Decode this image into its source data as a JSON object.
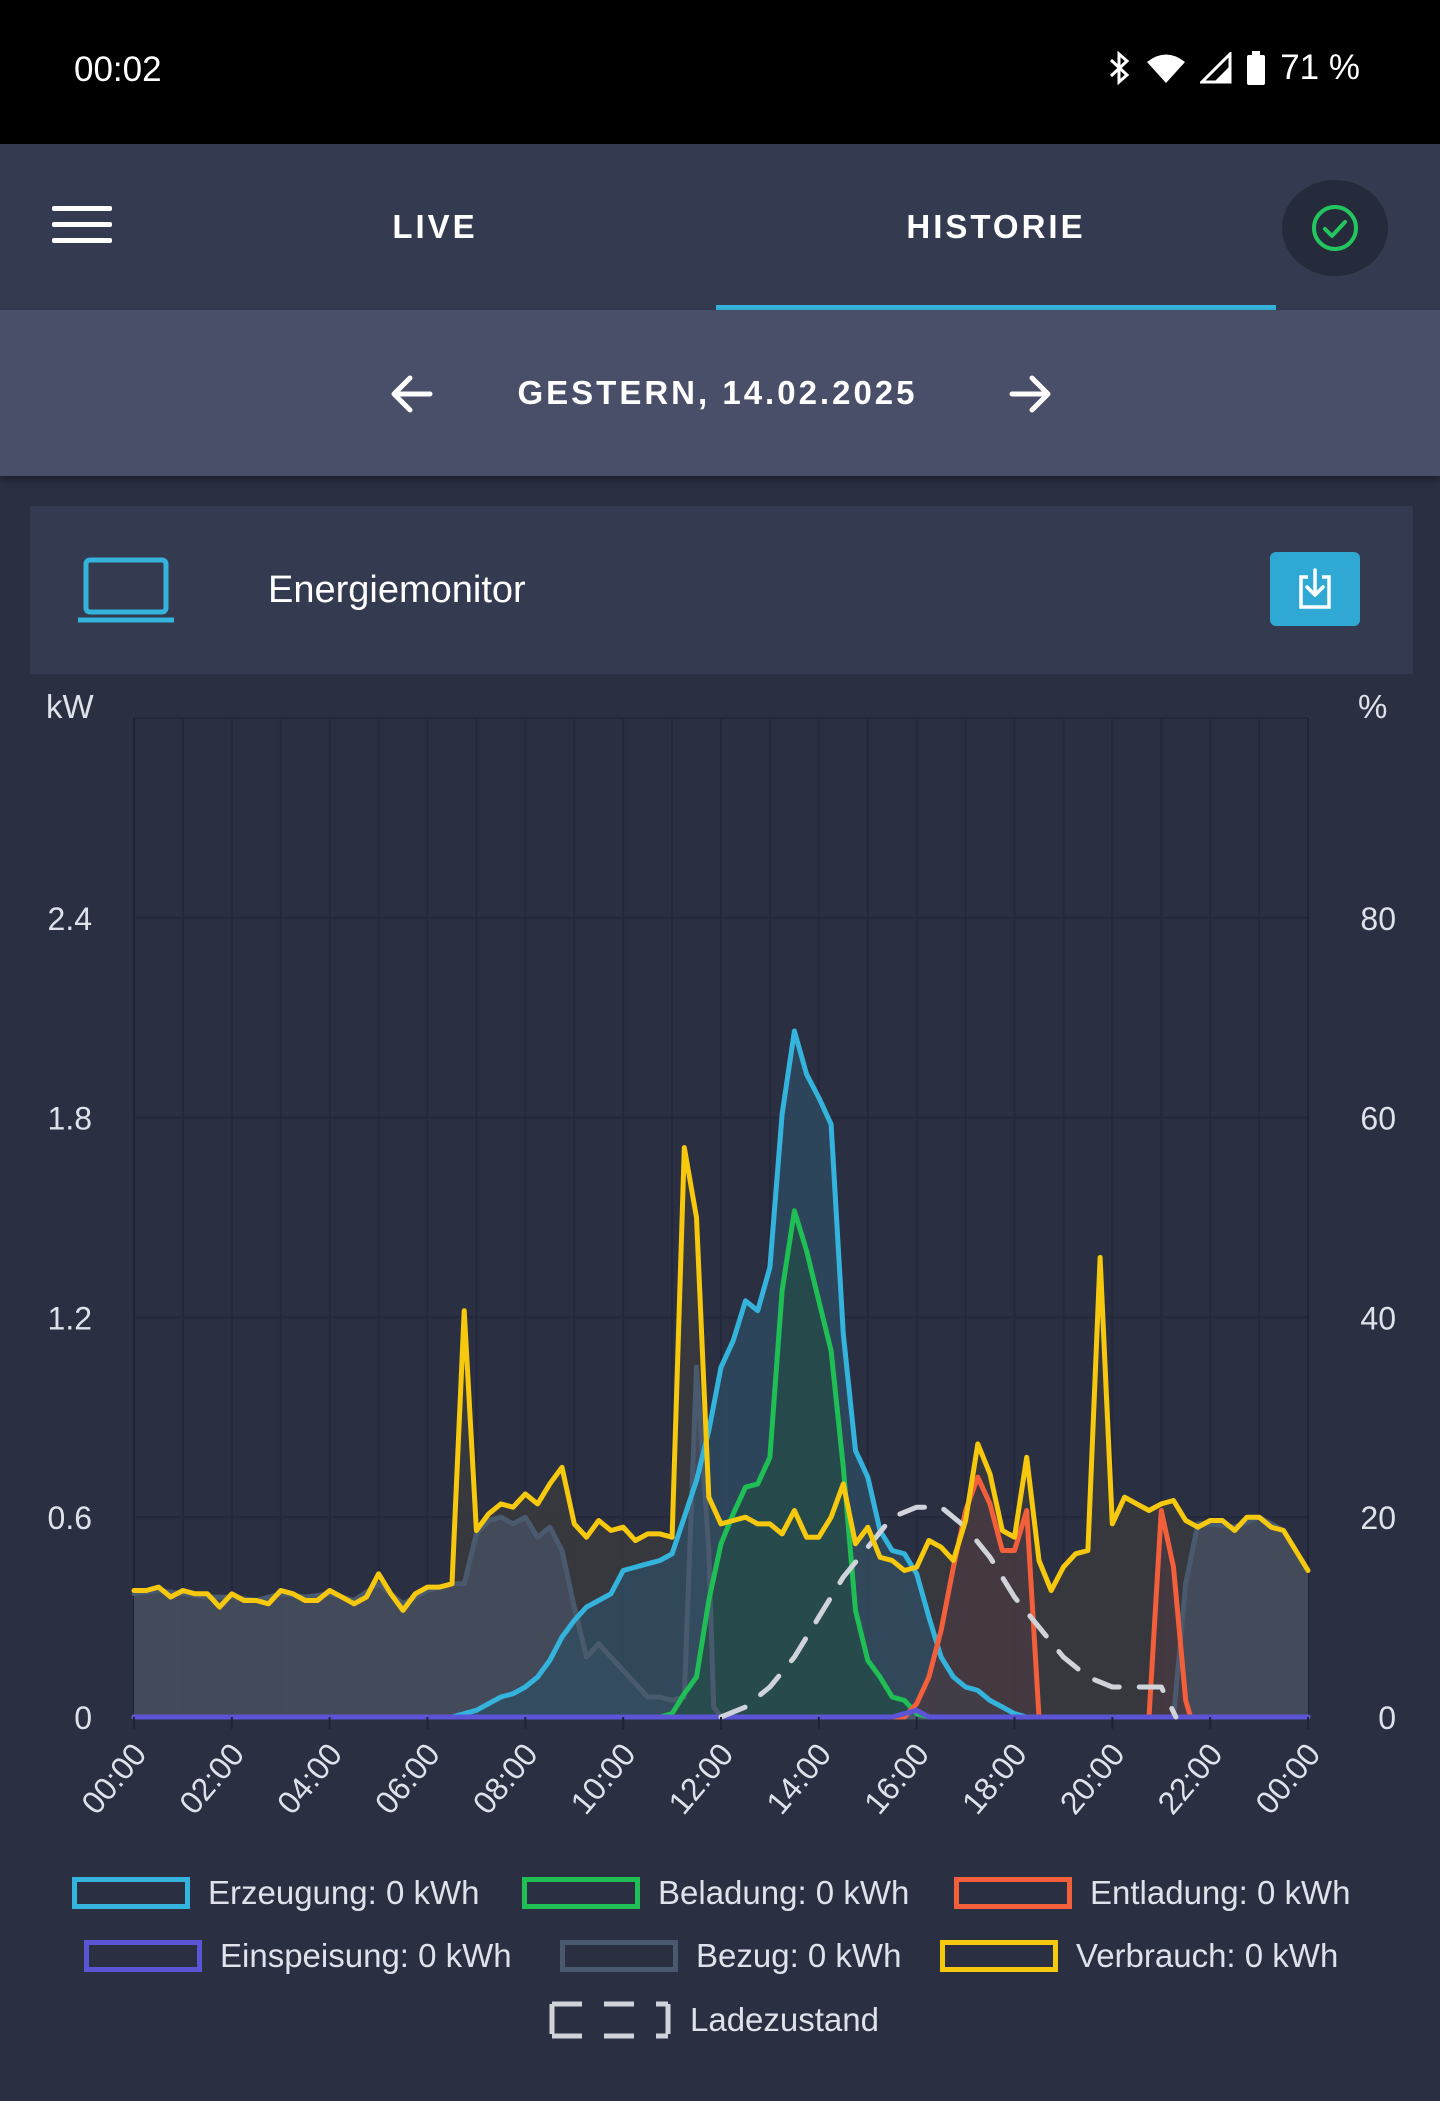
{
  "status_bar": {
    "time": "00:02",
    "battery": "71 %",
    "icons": [
      "bluetooth-icon",
      "wifi-icon",
      "signal-icon",
      "battery-icon"
    ]
  },
  "appbar": {
    "tabs": [
      {
        "label": "LIVE",
        "active": false
      },
      {
        "label": "HISTORIE",
        "active": true
      }
    ],
    "status_icon": "check-circle-icon",
    "accent": "#34b4dc",
    "ok_color": "#22c55e"
  },
  "date_nav": {
    "label": "GESTERN, 14.02.2025"
  },
  "card": {
    "title": "Energiemonitor",
    "icon": "laptop-icon",
    "action_icon": "download-icon"
  },
  "legend": [
    {
      "label": "Erzeugung: 0 kWh",
      "color": "#34b4dc"
    },
    {
      "label": "Beladung: 0 kWh",
      "color": "#1fbf55"
    },
    {
      "label": "Entladung: 0 kWh",
      "color": "#f25f3a"
    },
    {
      "label": "Einspeisung: 0 kWh",
      "color": "#5b55d6"
    },
    {
      "label": "Bezug: 0 kWh",
      "color": "#4a5a6e"
    },
    {
      "label": "Verbrauch: 0 kWh",
      "color": "#f6c90e"
    },
    {
      "label": "Ladezustand",
      "color": "#d0d3da"
    }
  ],
  "chart_data": {
    "type": "area",
    "left_axis_unit": "kW",
    "right_axis_unit": "%",
    "ylim": [
      0,
      3.0
    ],
    "y_ticks": [
      "0",
      "0.6",
      "1.2",
      "1.8",
      "2.4"
    ],
    "y_ticks_values": [
      0,
      0.6,
      1.2,
      1.8,
      2.4
    ],
    "y2lim": [
      0,
      100
    ],
    "y2_ticks": [
      "0",
      "20",
      "40",
      "60",
      "80"
    ],
    "y2_ticks_values": [
      0,
      20,
      40,
      60,
      80
    ],
    "x_ticks": [
      "00:00",
      "02:00",
      "04:00",
      "06:00",
      "08:00",
      "10:00",
      "12:00",
      "14:00",
      "16:00",
      "18:00",
      "20:00",
      "22:00",
      "00:00"
    ],
    "x_range_hours": [
      0,
      24
    ],
    "grid": true,
    "legend_position": "bottom",
    "series": [
      {
        "name": "Verbrauch",
        "color": "#f6c90e",
        "fill": "#3c3c3d",
        "axis": "left",
        "points": [
          [
            0,
            0.38
          ],
          [
            0.25,
            0.38
          ],
          [
            0.5,
            0.39
          ],
          [
            0.75,
            0.36
          ],
          [
            1,
            0.38
          ],
          [
            1.25,
            0.37
          ],
          [
            1.5,
            0.37
          ],
          [
            1.75,
            0.33
          ],
          [
            2,
            0.37
          ],
          [
            2.25,
            0.35
          ],
          [
            2.5,
            0.35
          ],
          [
            2.75,
            0.34
          ],
          [
            3,
            0.38
          ],
          [
            3.25,
            0.37
          ],
          [
            3.5,
            0.35
          ],
          [
            3.75,
            0.35
          ],
          [
            4,
            0.38
          ],
          [
            4.25,
            0.36
          ],
          [
            4.5,
            0.34
          ],
          [
            4.75,
            0.36
          ],
          [
            5,
            0.43
          ],
          [
            5.25,
            0.37
          ],
          [
            5.5,
            0.32
          ],
          [
            5.75,
            0.37
          ],
          [
            6,
            0.39
          ],
          [
            6.25,
            0.39
          ],
          [
            6.5,
            0.4
          ],
          [
            6.75,
            1.22
          ],
          [
            7,
            0.56
          ],
          [
            7.25,
            0.61
          ],
          [
            7.5,
            0.64
          ],
          [
            7.75,
            0.63
          ],
          [
            8,
            0.67
          ],
          [
            8.25,
            0.64
          ],
          [
            8.5,
            0.7
          ],
          [
            8.75,
            0.75
          ],
          [
            9,
            0.58
          ],
          [
            9.25,
            0.54
          ],
          [
            9.5,
            0.59
          ],
          [
            9.75,
            0.56
          ],
          [
            10,
            0.57
          ],
          [
            10.25,
            0.53
          ],
          [
            10.5,
            0.55
          ],
          [
            10.75,
            0.55
          ],
          [
            11,
            0.54
          ],
          [
            11.25,
            1.71
          ],
          [
            11.5,
            1.5
          ],
          [
            11.75,
            0.66
          ],
          [
            12,
            0.58
          ],
          [
            12.25,
            0.59
          ],
          [
            12.5,
            0.6
          ],
          [
            12.75,
            0.58
          ],
          [
            13,
            0.58
          ],
          [
            13.25,
            0.55
          ],
          [
            13.5,
            0.62
          ],
          [
            13.75,
            0.54
          ],
          [
            14,
            0.54
          ],
          [
            14.25,
            0.6
          ],
          [
            14.5,
            0.7
          ],
          [
            14.75,
            0.52
          ],
          [
            15,
            0.57
          ],
          [
            15.25,
            0.48
          ],
          [
            15.5,
            0.47
          ],
          [
            15.75,
            0.44
          ],
          [
            16,
            0.45
          ],
          [
            16.25,
            0.53
          ],
          [
            16.5,
            0.51
          ],
          [
            16.75,
            0.47
          ],
          [
            17,
            0.59
          ],
          [
            17.25,
            0.82
          ],
          [
            17.5,
            0.73
          ],
          [
            17.75,
            0.56
          ],
          [
            18,
            0.54
          ],
          [
            18.25,
            0.78
          ],
          [
            18.5,
            0.47
          ],
          [
            18.75,
            0.38
          ],
          [
            19,
            0.45
          ],
          [
            19.25,
            0.49
          ],
          [
            19.5,
            0.5
          ],
          [
            19.75,
            1.38
          ],
          [
            20,
            0.58
          ],
          [
            20.25,
            0.66
          ],
          [
            20.5,
            0.64
          ],
          [
            20.75,
            0.62
          ],
          [
            21,
            0.64
          ],
          [
            21.25,
            0.65
          ],
          [
            21.5,
            0.59
          ],
          [
            21.75,
            0.57
          ],
          [
            22,
            0.59
          ],
          [
            22.25,
            0.59
          ],
          [
            22.5,
            0.56
          ],
          [
            22.75,
            0.6
          ],
          [
            23,
            0.6
          ],
          [
            23.25,
            0.57
          ],
          [
            23.5,
            0.56
          ],
          [
            23.75,
            0.5
          ],
          [
            24,
            0.44
          ]
        ]
      },
      {
        "name": "Bezug",
        "color": "#4a5a6e",
        "fill": "#485064",
        "axis": "left",
        "points": [
          [
            0,
            0.37
          ],
          [
            0.5,
            0.38
          ],
          [
            1,
            0.37
          ],
          [
            1.5,
            0.36
          ],
          [
            2,
            0.36
          ],
          [
            2.5,
            0.35
          ],
          [
            3,
            0.37
          ],
          [
            3.5,
            0.36
          ],
          [
            4,
            0.37
          ],
          [
            4.5,
            0.35
          ],
          [
            5,
            0.4
          ],
          [
            5.5,
            0.34
          ],
          [
            6,
            0.38
          ],
          [
            6.5,
            0.4
          ],
          [
            6.75,
            0.4
          ],
          [
            7,
            0.55
          ],
          [
            7.25,
            0.59
          ],
          [
            7.5,
            0.6
          ],
          [
            7.75,
            0.58
          ],
          [
            8,
            0.6
          ],
          [
            8.25,
            0.54
          ],
          [
            8.5,
            0.57
          ],
          [
            8.75,
            0.5
          ],
          [
            9,
            0.33
          ],
          [
            9.25,
            0.18
          ],
          [
            9.5,
            0.22
          ],
          [
            9.75,
            0.18
          ],
          [
            10,
            0.14
          ],
          [
            10.25,
            0.1
          ],
          [
            10.5,
            0.06
          ],
          [
            10.75,
            0.06
          ],
          [
            11,
            0.05
          ],
          [
            11.25,
            0.06
          ],
          [
            11.5,
            1.05
          ],
          [
            11.75,
            0.5
          ],
          [
            11.85,
            0.03
          ],
          [
            12,
            0.0
          ],
          [
            15,
            0.0
          ],
          [
            15.5,
            0.0
          ],
          [
            16,
            0.0
          ],
          [
            17,
            0.0
          ],
          [
            18,
            0.0
          ],
          [
            19,
            0.0
          ],
          [
            20,
            0.0
          ],
          [
            21,
            0.0
          ],
          [
            21.25,
            0.0
          ],
          [
            21.5,
            0.4
          ],
          [
            21.75,
            0.58
          ],
          [
            22,
            0.58
          ],
          [
            22.5,
            0.57
          ],
          [
            23,
            0.6
          ],
          [
            23.5,
            0.56
          ],
          [
            24,
            0.44
          ]
        ]
      },
      {
        "name": "Erzeugung",
        "color": "#34b4dc",
        "fill": "#2f4d63",
        "axis": "left",
        "points": [
          [
            0,
            0.0
          ],
          [
            6.5,
            0.0
          ],
          [
            6.75,
            0.01
          ],
          [
            7,
            0.02
          ],
          [
            7.25,
            0.04
          ],
          [
            7.5,
            0.06
          ],
          [
            7.75,
            0.07
          ],
          [
            8,
            0.09
          ],
          [
            8.25,
            0.12
          ],
          [
            8.5,
            0.17
          ],
          [
            8.75,
            0.24
          ],
          [
            9,
            0.29
          ],
          [
            9.25,
            0.33
          ],
          [
            9.5,
            0.35
          ],
          [
            9.75,
            0.37
          ],
          [
            10,
            0.44
          ],
          [
            10.25,
            0.45
          ],
          [
            10.5,
            0.46
          ],
          [
            10.75,
            0.47
          ],
          [
            11,
            0.49
          ],
          [
            11.25,
            0.6
          ],
          [
            11.5,
            0.71
          ],
          [
            11.75,
            0.86
          ],
          [
            12,
            1.05
          ],
          [
            12.25,
            1.13
          ],
          [
            12.5,
            1.25
          ],
          [
            12.75,
            1.22
          ],
          [
            13,
            1.35
          ],
          [
            13.25,
            1.81
          ],
          [
            13.5,
            2.06
          ],
          [
            13.75,
            1.93
          ],
          [
            14,
            1.86
          ],
          [
            14.25,
            1.78
          ],
          [
            14.5,
            1.15
          ],
          [
            14.75,
            0.8
          ],
          [
            15,
            0.72
          ],
          [
            15.25,
            0.56
          ],
          [
            15.5,
            0.5
          ],
          [
            15.75,
            0.49
          ],
          [
            16,
            0.43
          ],
          [
            16.25,
            0.3
          ],
          [
            16.5,
            0.18
          ],
          [
            16.75,
            0.12
          ],
          [
            17,
            0.09
          ],
          [
            17.25,
            0.08
          ],
          [
            17.5,
            0.05
          ],
          [
            17.75,
            0.03
          ],
          [
            18,
            0.01
          ],
          [
            18.25,
            0.0
          ],
          [
            24,
            0.0
          ]
        ]
      },
      {
        "name": "Beladung",
        "color": "#1fbf55",
        "fill": "#244c48",
        "axis": "left",
        "points": [
          [
            0,
            0.0
          ],
          [
            10.75,
            0.0
          ],
          [
            11,
            0.01
          ],
          [
            11.25,
            0.07
          ],
          [
            11.5,
            0.12
          ],
          [
            11.75,
            0.35
          ],
          [
            12,
            0.52
          ],
          [
            12.25,
            0.61
          ],
          [
            12.5,
            0.69
          ],
          [
            12.75,
            0.7
          ],
          [
            13,
            0.78
          ],
          [
            13.25,
            1.28
          ],
          [
            13.5,
            1.52
          ],
          [
            13.75,
            1.4
          ],
          [
            14,
            1.25
          ],
          [
            14.25,
            1.1
          ],
          [
            14.5,
            0.75
          ],
          [
            14.75,
            0.32
          ],
          [
            15,
            0.17
          ],
          [
            15.25,
            0.12
          ],
          [
            15.5,
            0.06
          ],
          [
            15.75,
            0.05
          ],
          [
            16,
            0.01
          ],
          [
            16.25,
            0.0
          ],
          [
            24,
            0.0
          ]
        ]
      },
      {
        "name": "Entladung",
        "color": "#f25f3a",
        "fill": "#4a3a42",
        "axis": "left",
        "points": [
          [
            0,
            0.0
          ],
          [
            15.75,
            0.0
          ],
          [
            16,
            0.04
          ],
          [
            16.25,
            0.12
          ],
          [
            16.5,
            0.26
          ],
          [
            16.75,
            0.45
          ],
          [
            17,
            0.62
          ],
          [
            17.25,
            0.72
          ],
          [
            17.5,
            0.64
          ],
          [
            17.75,
            0.5
          ],
          [
            18,
            0.5
          ],
          [
            18.25,
            0.62
          ],
          [
            18.5,
            0.0
          ],
          [
            20.75,
            0.0
          ],
          [
            21,
            0.62
          ],
          [
            21.25,
            0.45
          ],
          [
            21.5,
            0.05
          ],
          [
            21.6,
            0.0
          ],
          [
            24,
            0.0
          ]
        ]
      },
      {
        "name": "Einspeisung",
        "color": "#5b55d6",
        "fill": "#3a3f62",
        "axis": "left",
        "points": [
          [
            0,
            0.0
          ],
          [
            15.5,
            0.0
          ],
          [
            15.75,
            0.01
          ],
          [
            16,
            0.02
          ],
          [
            16.25,
            0.0
          ],
          [
            24,
            0.0
          ]
        ]
      },
      {
        "name": "Ladezustand",
        "color": "#d0d3da",
        "dashed": true,
        "axis": "right",
        "points": [
          [
            12,
            0
          ],
          [
            12.5,
            1
          ],
          [
            13,
            3
          ],
          [
            13.5,
            6
          ],
          [
            14,
            10
          ],
          [
            14.5,
            14
          ],
          [
            15,
            17
          ],
          [
            15.5,
            20
          ],
          [
            16,
            21
          ],
          [
            16.5,
            21
          ],
          [
            17,
            19
          ],
          [
            17.5,
            16
          ],
          [
            18,
            12
          ],
          [
            18.5,
            9
          ],
          [
            19,
            6
          ],
          [
            19.5,
            4
          ],
          [
            20,
            3
          ],
          [
            20.5,
            3
          ],
          [
            21,
            3
          ],
          [
            21.3,
            0
          ]
        ]
      }
    ]
  }
}
